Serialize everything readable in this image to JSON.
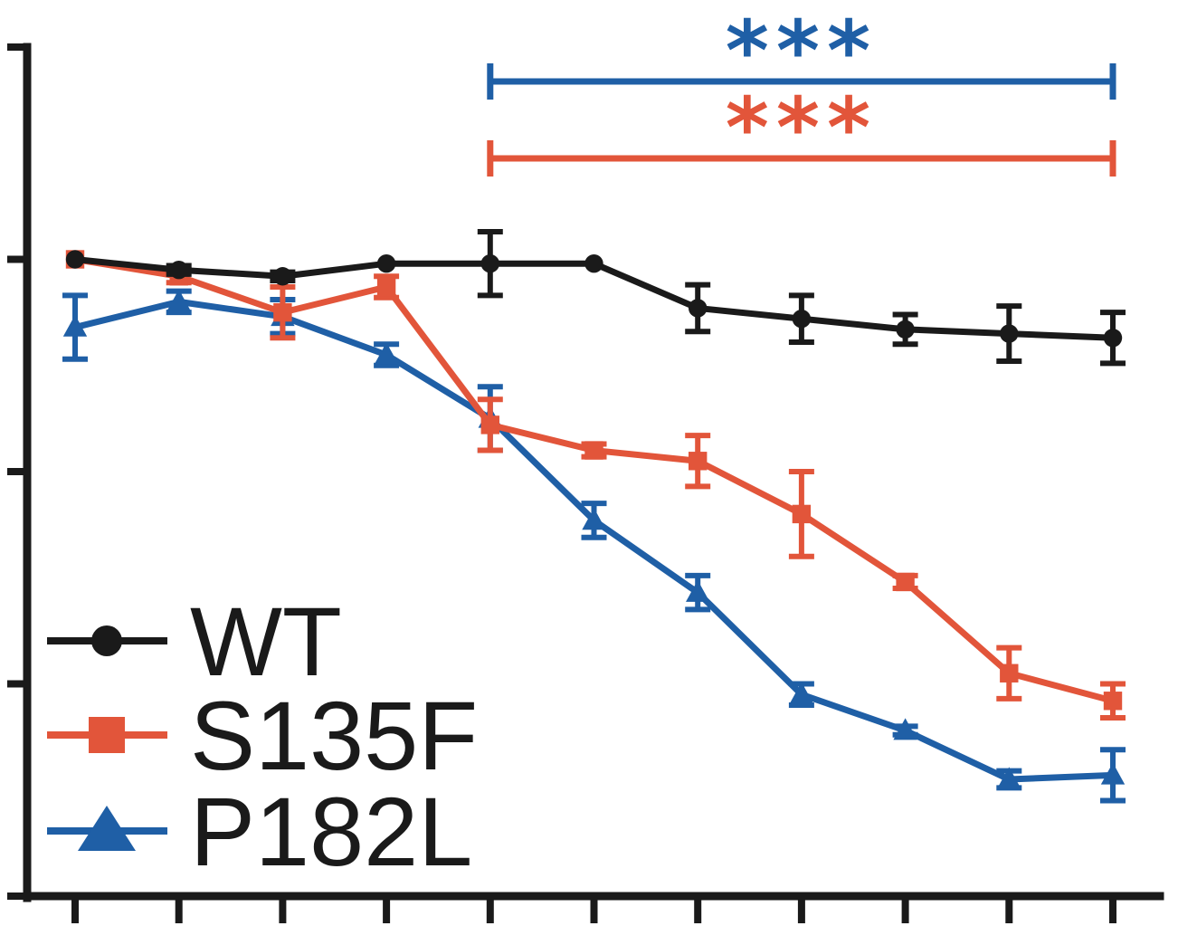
{
  "chart_data": {
    "type": "line",
    "title": "",
    "xlabel": "",
    "ylabel": "",
    "x": [
      1,
      2,
      3,
      4,
      5,
      6,
      7,
      8,
      9,
      10,
      11
    ],
    "xlim": [
      0.5,
      11.5
    ],
    "ylim": [
      0,
      4
    ],
    "y_ticks": [
      0,
      1,
      2,
      3,
      4
    ],
    "grid": false,
    "legend_position": "bottom-left",
    "series": [
      {
        "name": "WT",
        "marker": "circle",
        "color": "#1a1a1a",
        "values": [
          3.0,
          2.95,
          2.92,
          2.98,
          2.98,
          2.98,
          2.77,
          2.72,
          2.67,
          2.65,
          2.63
        ],
        "errors": [
          0.01,
          0.02,
          0.02,
          0.01,
          0.15,
          0.01,
          0.11,
          0.11,
          0.07,
          0.13,
          0.12
        ]
      },
      {
        "name": "S135F",
        "marker": "square",
        "color": "#e2553a",
        "values": [
          3.0,
          2.92,
          2.75,
          2.87,
          2.22,
          2.1,
          2.05,
          1.8,
          1.48,
          1.05,
          0.92
        ],
        "errors": [
          0.01,
          0.03,
          0.12,
          0.05,
          0.12,
          0.03,
          0.12,
          0.2,
          0.03,
          0.12,
          0.08
        ]
      },
      {
        "name": "P182L",
        "marker": "triangle",
        "color": "#1f5fa6",
        "values": [
          2.68,
          2.8,
          2.73,
          2.55,
          2.25,
          1.77,
          1.43,
          0.95,
          0.78,
          0.55,
          0.57
        ],
        "errors": [
          0.15,
          0.05,
          0.08,
          0.05,
          0.15,
          0.08,
          0.08,
          0.05,
          0.02,
          0.04,
          0.12
        ]
      }
    ],
    "significance": [
      {
        "label": "***",
        "color": "#1f5fa6",
        "x_start": 5,
        "x_end": 11
      },
      {
        "label": "***",
        "color": "#e2553a",
        "x_start": 5,
        "x_end": 11
      }
    ]
  }
}
